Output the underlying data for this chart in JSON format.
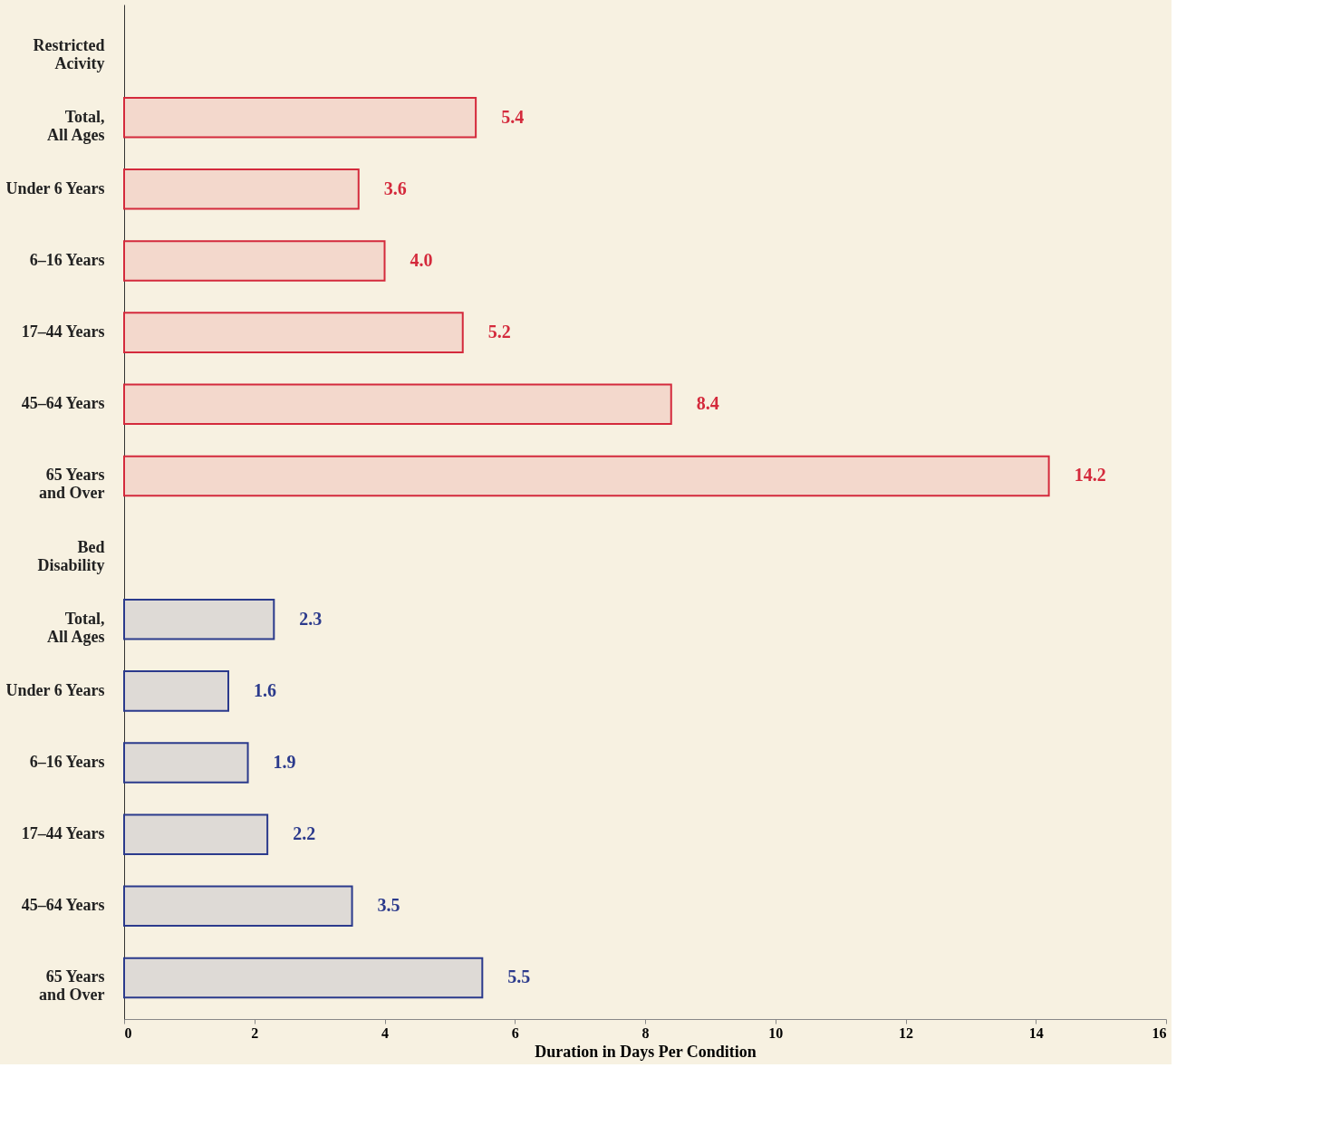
{
  "chart_data": {
    "type": "bar",
    "orientation": "horizontal",
    "xlabel": "Duration in Days Per Condition",
    "categories": [
      "Restricted\nAcivity",
      "Total,\nAll Ages",
      "Under 6 Years",
      "6–16 Years",
      "17–44 Years",
      "45–64 Years",
      "65 Years\nand Over",
      "Bed\nDisability",
      "Total,\nAll Ages",
      "Under 6 Years",
      "6–16 Years",
      "17–44 Years",
      "45–64 Years",
      "65 Years\nand Over"
    ],
    "series": [
      {
        "color": "#d42a3c",
        "values": [
          null,
          5.4,
          3.6,
          4.0,
          5.2,
          8.4,
          14.2,
          null,
          null,
          null,
          null,
          null,
          null,
          null
        ],
        "value_labels": [
          null,
          "5.4",
          "3.6",
          "4.0",
          "5.2",
          "8.4",
          "14.2",
          null,
          null,
          null,
          null,
          null,
          null,
          null
        ]
      },
      {
        "color": "#2b3a8c",
        "values": [
          null,
          null,
          null,
          null,
          null,
          null,
          null,
          null,
          2.3,
          1.6,
          1.9,
          2.2,
          3.5,
          5.5
        ],
        "value_labels": [
          null,
          null,
          null,
          null,
          null,
          null,
          null,
          null,
          "2.3",
          "1.6",
          "1.9",
          "2.2",
          "3.5",
          "5.5"
        ]
      }
    ],
    "xlim": [
      0,
      16
    ],
    "xticks": [
      0,
      2,
      4,
      6,
      8,
      10,
      12,
      14,
      16
    ],
    "grid": false,
    "legend": false
  }
}
